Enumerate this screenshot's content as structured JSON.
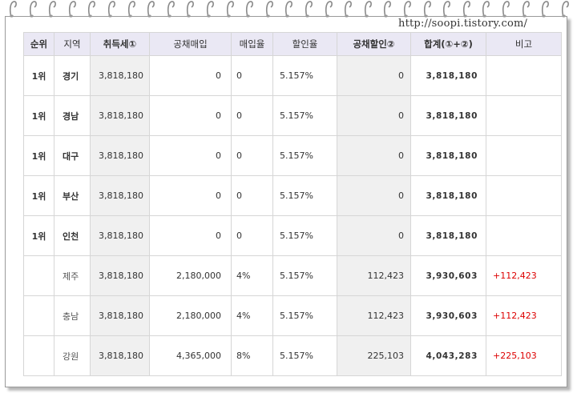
{
  "watermark": "http://soopi.tistory.com/",
  "table": {
    "headers": [
      "순위",
      "지역",
      "취득세①",
      "공채매입",
      "매입율",
      "할인율",
      "공채할인②",
      "합계(①+②)",
      "비고"
    ],
    "rows": [
      {
        "rank": "1위",
        "region": "경기",
        "acq_tax": "3,818,180",
        "bond_purchase": "0",
        "purchase_rate": "0",
        "discount_rate": "5.157%",
        "bond_discount": "0",
        "total": "3,818,180",
        "note": ""
      },
      {
        "rank": "1위",
        "region": "경남",
        "acq_tax": "3,818,180",
        "bond_purchase": "0",
        "purchase_rate": "0",
        "discount_rate": "5.157%",
        "bond_discount": "0",
        "total": "3,818,180",
        "note": ""
      },
      {
        "rank": "1위",
        "region": "대구",
        "acq_tax": "3,818,180",
        "bond_purchase": "0",
        "purchase_rate": "0",
        "discount_rate": "5.157%",
        "bond_discount": "0",
        "total": "3,818,180",
        "note": ""
      },
      {
        "rank": "1위",
        "region": "부산",
        "acq_tax": "3,818,180",
        "bond_purchase": "0",
        "purchase_rate": "0",
        "discount_rate": "5.157%",
        "bond_discount": "0",
        "total": "3,818,180",
        "note": ""
      },
      {
        "rank": "1위",
        "region": "인천",
        "acq_tax": "3,818,180",
        "bond_purchase": "0",
        "purchase_rate": "0",
        "discount_rate": "5.157%",
        "bond_discount": "0",
        "total": "3,818,180",
        "note": ""
      },
      {
        "rank": "",
        "region": "제주",
        "acq_tax": "3,818,180",
        "bond_purchase": "2,180,000",
        "purchase_rate": "4%",
        "discount_rate": "5.157%",
        "bond_discount": "112,423",
        "total": "3,930,603",
        "note": "+112,423"
      },
      {
        "rank": "",
        "region": "충남",
        "acq_tax": "3,818,180",
        "bond_purchase": "2,180,000",
        "purchase_rate": "4%",
        "discount_rate": "5.157%",
        "bond_discount": "112,423",
        "total": "3,930,603",
        "note": "+112,423"
      },
      {
        "rank": "",
        "region": "강원",
        "acq_tax": "3,818,180",
        "bond_purchase": "4,365,000",
        "purchase_rate": "8%",
        "discount_rate": "5.157%",
        "bond_discount": "225,103",
        "total": "4,043,283",
        "note": "+225,103"
      }
    ]
  },
  "colors": {
    "header_bg": "#eae8f4",
    "shaded_col": "#f0f0f0",
    "note_red": "#dd0000"
  }
}
